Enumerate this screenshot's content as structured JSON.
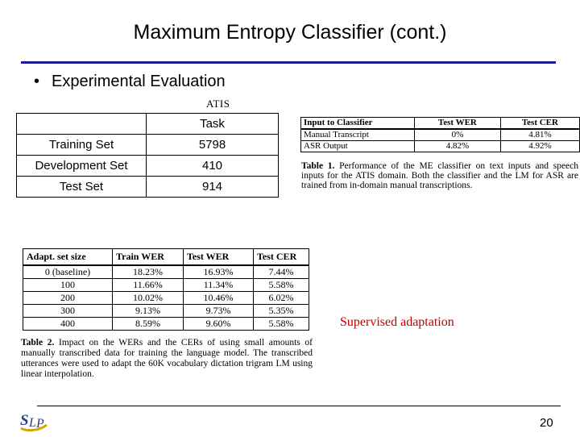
{
  "title": "Maximum Entropy Classifier (cont.)",
  "bullet": {
    "marker": "•",
    "text": "Experimental Evaluation"
  },
  "atis_label": "ATIS",
  "sets_table": {
    "header": [
      "",
      "Task"
    ],
    "rows": [
      [
        "Training Set",
        "5798"
      ],
      [
        "Development Set",
        "410"
      ],
      [
        "Test Set",
        "914"
      ]
    ]
  },
  "table1": {
    "headers": [
      "Input to Classifier",
      "Test WER",
      "Test CER"
    ],
    "rows": [
      [
        "Manual Transcript",
        "0%",
        "4.81%"
      ],
      [
        "ASR Output",
        "4.82%",
        "4.92%"
      ]
    ],
    "caption_label": "Table 1.",
    "caption_text": "Performance of the ME classifier on text inputs and speech inputs for the ATIS domain. Both the classifier and the LM for ASR are trained from in-domain manual transcriptions."
  },
  "table2": {
    "headers": [
      "Adapt. set size",
      "Train WER",
      "Test WER",
      "Test CER"
    ],
    "rows": [
      [
        "0 (baseline)",
        "18.23%",
        "16.93%",
        "7.44%"
      ],
      [
        "100",
        "11.66%",
        "11.34%",
        "5.58%"
      ],
      [
        "200",
        "10.02%",
        "10.46%",
        "6.02%"
      ],
      [
        "300",
        "9.13%",
        "9.73%",
        "5.35%"
      ],
      [
        "400",
        "8.59%",
        "9.60%",
        "5.58%"
      ]
    ],
    "caption_label": "Table 2.",
    "caption_text": "Impact on the WERs and the CERs of using small amounts of manually transcribed data for training the language model. The transcribed utterances were used to adapt the 60K vocabulary dictation trigram LM using linear interpolation."
  },
  "annotation": "Supervised adaptation",
  "annotation_color": "#c00000",
  "rule_color": "#1a1a9c",
  "logo": {
    "text": "SLP",
    "name": "slp-logo"
  },
  "page_number": "20"
}
